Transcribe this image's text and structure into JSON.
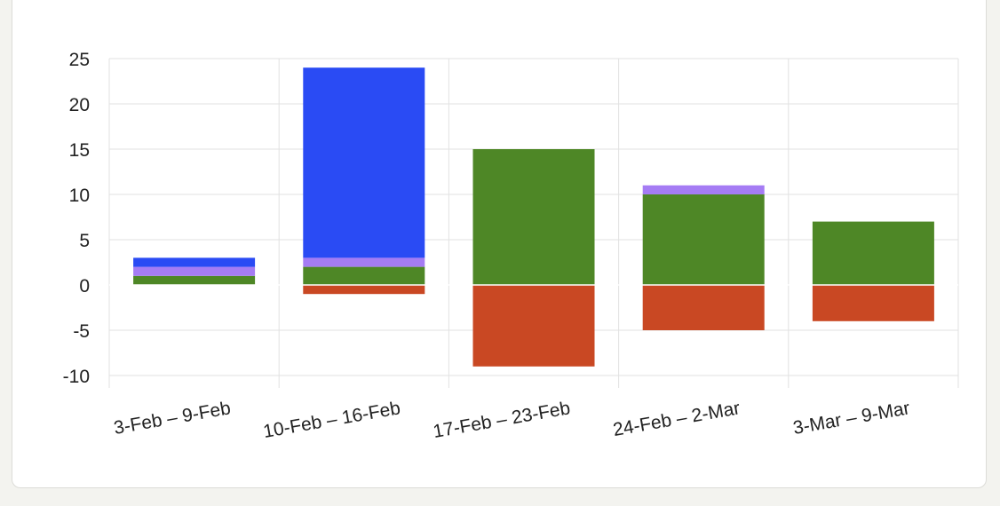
{
  "chart_data": {
    "type": "bar",
    "stacked": true,
    "categories": [
      "3-Feb – 9-Feb",
      "10-Feb – 16-Feb",
      "17-Feb – 23-Feb",
      "24-Feb – 2-Mar",
      "3-Mar – 9-Mar"
    ],
    "series": [
      {
        "color": "#4e8726",
        "values": [
          1,
          2,
          15,
          10,
          7
        ]
      },
      {
        "color": "#a57cf4",
        "values": [
          1,
          1,
          0,
          1,
          0
        ]
      },
      {
        "color": "#2a4bf4",
        "values": [
          1,
          21,
          0,
          0,
          0
        ]
      },
      {
        "color": "#c94823",
        "values": [
          0,
          -1,
          -9,
          -5,
          -4
        ]
      }
    ],
    "ylim": [
      -10,
      25
    ],
    "yticks": [
      "25",
      "20",
      "15",
      "10",
      "5",
      "0",
      "-5",
      "-10"
    ],
    "grid": true,
    "legend": "none"
  }
}
